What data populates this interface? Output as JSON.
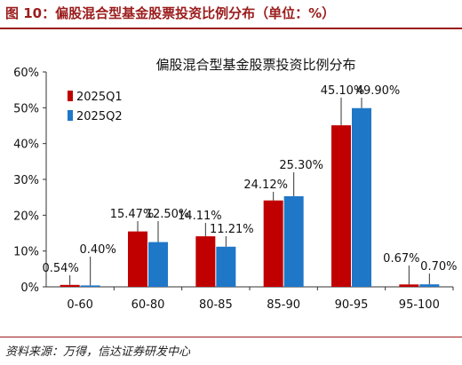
{
  "figure": {
    "title": "图 10：偏股混合型基金股票投资比例分布（单位：%）",
    "source": "资料来源：万得，信达证券研发中心"
  },
  "colors": {
    "accent": "#9b1c1c",
    "series_1": "#c00000",
    "series_2": "#1f77c8"
  },
  "chart_data": {
    "type": "bar",
    "title": "偏股混合型基金股票投资比例分布",
    "categories": [
      "0-60",
      "60-80",
      "80-85",
      "85-90",
      "90-95",
      "95-100"
    ],
    "series": [
      {
        "name": "2025Q1",
        "values": [
          0.54,
          15.47,
          14.11,
          24.12,
          45.1,
          0.67
        ],
        "labels": [
          "0.54%",
          "15.47%",
          "14.11%",
          "24.12%",
          "45.10%",
          "0.67%"
        ]
      },
      {
        "name": "2025Q2",
        "values": [
          0.4,
          12.5,
          11.21,
          25.3,
          49.9,
          0.7
        ],
        "labels": [
          "0.40%",
          "12.50%",
          "11.21%",
          "25.30%",
          "49.90%",
          "0.70%"
        ]
      }
    ],
    "yticks": [
      "0%",
      "10%",
      "20%",
      "30%",
      "40%",
      "50%",
      "60%"
    ],
    "ylim": [
      0,
      60
    ],
    "xlabel": "",
    "ylabel": "",
    "legend_position": "top-left",
    "grid": false
  }
}
